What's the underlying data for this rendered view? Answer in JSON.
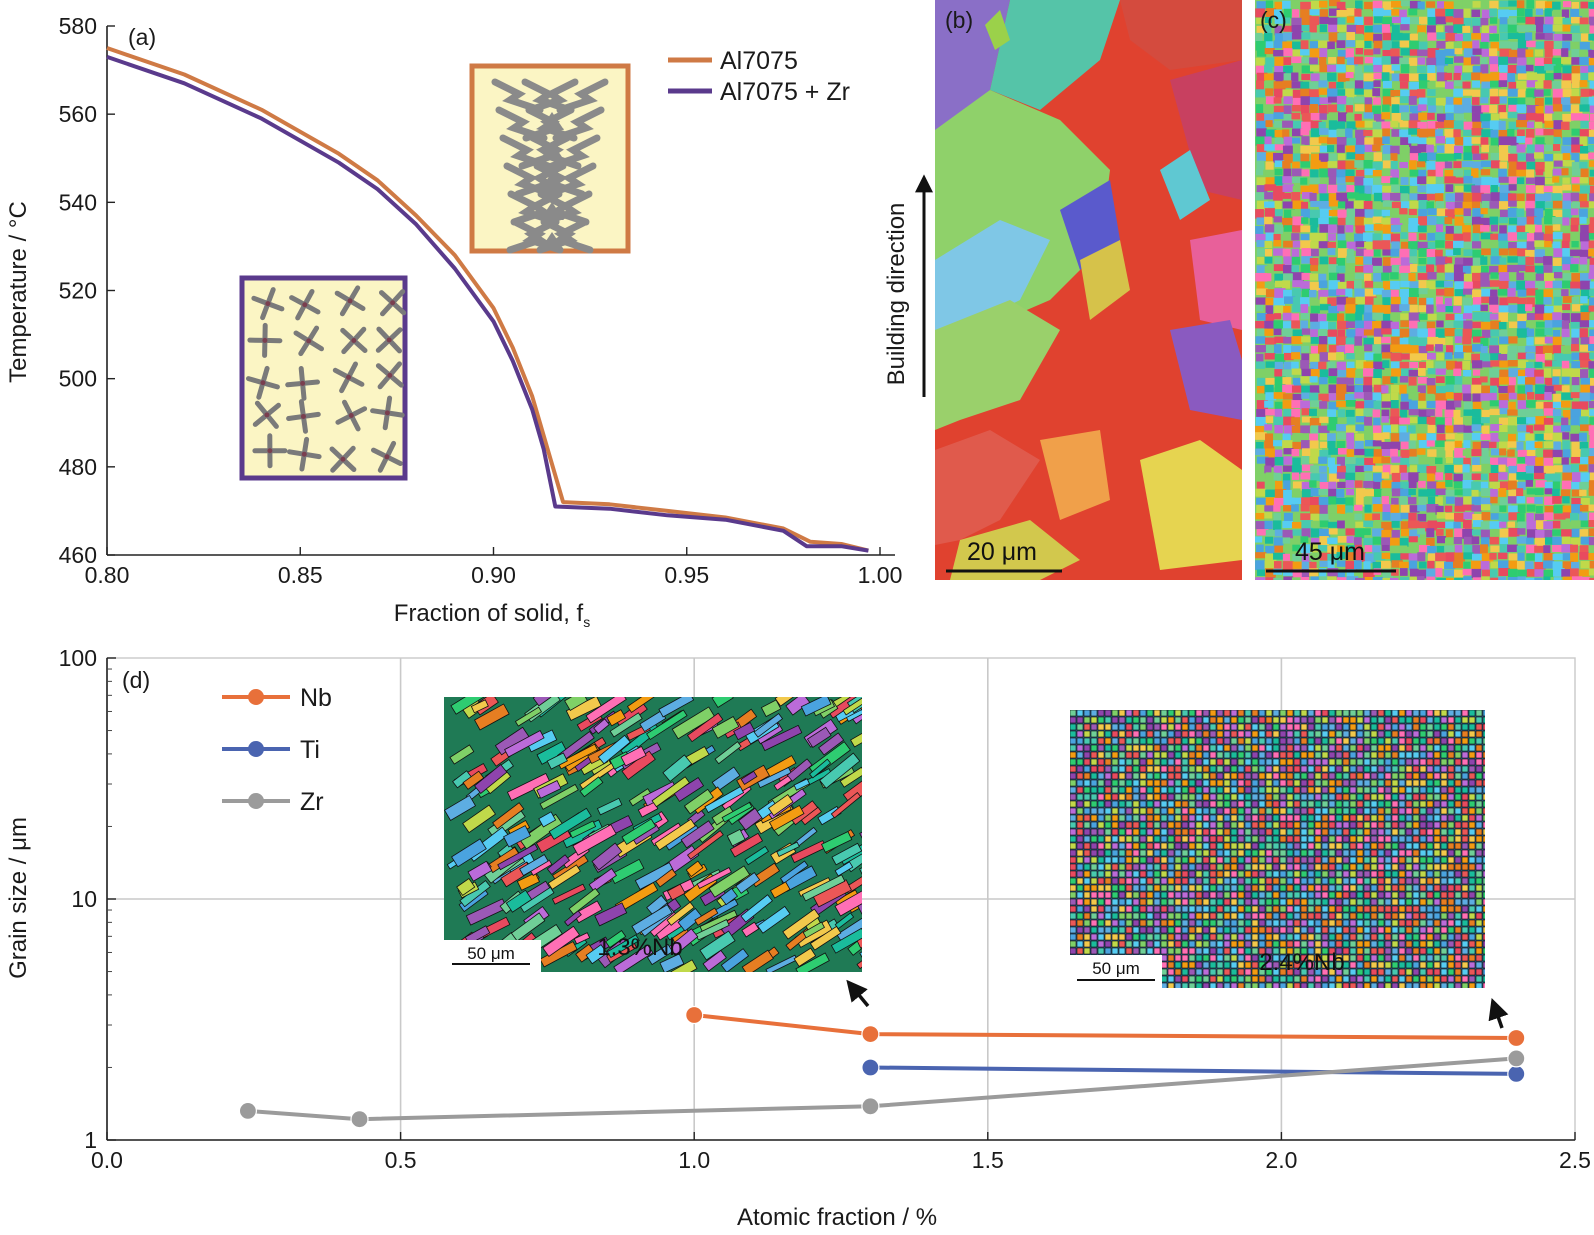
{
  "colors": {
    "al7075": "#cf7a45",
    "al7075_zr": "#5a3a8c",
    "nb": "#e8703a",
    "ti": "#4a64b0",
    "zr": "#9b9b9b",
    "grid": "#c9c9c9"
  },
  "panel_a": {
    "label": "(a)",
    "legend": [
      "Al7075",
      "Al7075 + Zr"
    ],
    "inset_icons": [
      "columnar-dendrite-icon",
      "equiaxed-dendrite-icon"
    ]
  },
  "panel_b": {
    "label": "(b)",
    "scale_bar": "20 μm",
    "arrow_label": "Building direction"
  },
  "panel_c": {
    "label": "(c)",
    "scale_bar": "45 μm"
  },
  "panel_d": {
    "label": "(d)",
    "insets": [
      {
        "scale_bar": "50 μm",
        "label": "1.3%Nb"
      },
      {
        "scale_bar": "50 μm",
        "label": "2.4%Nb"
      }
    ]
  },
  "chart_data": [
    {
      "type": "line",
      "panel": "(a)",
      "xlabel": "Fraction of solid, f",
      "xlabel_sub": "s",
      "ylabel": "Temperature / °C",
      "xlim": [
        0.8,
        1.0
      ],
      "ylim": [
        460,
        580
      ],
      "x_ticks": [
        "0.80",
        "0.85",
        "0.90",
        "0.95",
        "1.00"
      ],
      "y_ticks": [
        "460",
        "480",
        "500",
        "520",
        "540",
        "560",
        "580"
      ],
      "legend_position": "top-right",
      "series": [
        {
          "name": "Al7075",
          "x": [
            0.8,
            0.82,
            0.84,
            0.86,
            0.87,
            0.88,
            0.89,
            0.9,
            0.905,
            0.91,
            0.915,
            0.918,
            0.93,
            0.945,
            0.96,
            0.975,
            0.982,
            0.99,
            0.997
          ],
          "y": [
            575,
            569,
            561,
            551,
            545,
            537,
            528,
            516,
            507,
            496,
            481,
            472,
            471.5,
            470,
            468.5,
            466,
            463,
            462.5,
            461
          ]
        },
        {
          "name": "Al7075 + Zr",
          "x": [
            0.8,
            0.82,
            0.84,
            0.86,
            0.87,
            0.88,
            0.89,
            0.9,
            0.905,
            0.91,
            0.913,
            0.916,
            0.93,
            0.945,
            0.96,
            0.975,
            0.981,
            0.99,
            0.997
          ],
          "y": [
            573,
            567,
            559,
            549,
            543,
            535,
            525,
            513,
            504,
            493,
            484,
            471,
            470.5,
            469,
            468,
            465.5,
            462,
            462,
            461
          ]
        }
      ]
    },
    {
      "type": "line",
      "panel": "(d)",
      "xlabel": "Atomic fraction / %",
      "ylabel": "Grain size / μm",
      "y_scale": "log",
      "xlim": [
        0,
        2.5
      ],
      "ylim": [
        1,
        100
      ],
      "x_ticks": [
        "0.0",
        "0.5",
        "1.0",
        "1.5",
        "2.0",
        "2.5"
      ],
      "y_ticks": [
        "1",
        "10",
        "100"
      ],
      "grid": true,
      "legend_position": "top-left",
      "series": [
        {
          "name": "Nb",
          "x": [
            1.0,
            1.3,
            2.4
          ],
          "y": [
            3.3,
            2.75,
            2.65
          ]
        },
        {
          "name": "Ti",
          "x": [
            1.3,
            2.4
          ],
          "y": [
            2.0,
            1.88
          ]
        },
        {
          "name": "Zr",
          "x": [
            0.24,
            0.43,
            1.3,
            2.4
          ],
          "y": [
            1.32,
            1.22,
            1.38,
            2.18
          ]
        }
      ]
    }
  ]
}
